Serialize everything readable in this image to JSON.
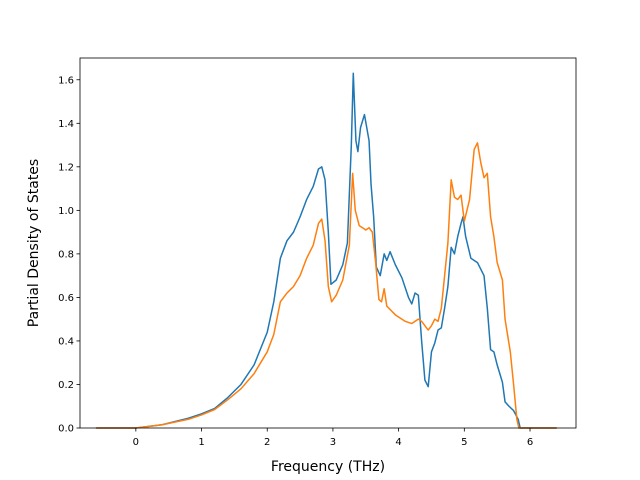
{
  "chart_data": {
    "type": "line",
    "title": "",
    "xlabel": "Frequency (THz)",
    "ylabel": "Partial Density of States",
    "xlim": [
      -0.85,
      6.7
    ],
    "ylim": [
      0.0,
      1.7
    ],
    "xticks": [
      0,
      1,
      2,
      3,
      4,
      5,
      6
    ],
    "yticks": [
      0.0,
      0.2,
      0.4,
      0.6,
      0.8,
      1.0,
      1.2,
      1.4,
      1.6
    ],
    "ytick_labels": [
      "0.0",
      "0.2",
      "0.4",
      "0.6",
      "0.8",
      "1.0",
      "1.2",
      "1.4",
      "1.6"
    ],
    "grid": false,
    "legend": false,
    "series": [
      {
        "color": "#1f77b4",
        "points": [
          [
            -0.6,
            0.0
          ],
          [
            0.0,
            0.0
          ],
          [
            0.4,
            0.015
          ],
          [
            0.8,
            0.045
          ],
          [
            1.0,
            0.065
          ],
          [
            1.2,
            0.09
          ],
          [
            1.4,
            0.14
          ],
          [
            1.6,
            0.2
          ],
          [
            1.8,
            0.29
          ],
          [
            2.0,
            0.44
          ],
          [
            2.1,
            0.58
          ],
          [
            2.2,
            0.78
          ],
          [
            2.3,
            0.86
          ],
          [
            2.4,
            0.9
          ],
          [
            2.5,
            0.97
          ],
          [
            2.6,
            1.05
          ],
          [
            2.7,
            1.11
          ],
          [
            2.78,
            1.19
          ],
          [
            2.83,
            1.2
          ],
          [
            2.88,
            1.14
          ],
          [
            2.93,
            0.9
          ],
          [
            2.97,
            0.66
          ],
          [
            3.05,
            0.68
          ],
          [
            3.15,
            0.75
          ],
          [
            3.22,
            0.85
          ],
          [
            3.28,
            1.3
          ],
          [
            3.31,
            1.63
          ],
          [
            3.35,
            1.32
          ],
          [
            3.38,
            1.27
          ],
          [
            3.42,
            1.38
          ],
          [
            3.48,
            1.44
          ],
          [
            3.55,
            1.32
          ],
          [
            3.58,
            1.12
          ],
          [
            3.62,
            0.97
          ],
          [
            3.66,
            0.74
          ],
          [
            3.72,
            0.7
          ],
          [
            3.78,
            0.8
          ],
          [
            3.82,
            0.77
          ],
          [
            3.87,
            0.81
          ],
          [
            3.95,
            0.75
          ],
          [
            4.05,
            0.69
          ],
          [
            4.15,
            0.6
          ],
          [
            4.2,
            0.57
          ],
          [
            4.25,
            0.62
          ],
          [
            4.3,
            0.61
          ],
          [
            4.35,
            0.4
          ],
          [
            4.4,
            0.22
          ],
          [
            4.45,
            0.19
          ],
          [
            4.5,
            0.35
          ],
          [
            4.55,
            0.39
          ],
          [
            4.6,
            0.45
          ],
          [
            4.65,
            0.46
          ],
          [
            4.7,
            0.55
          ],
          [
            4.75,
            0.65
          ],
          [
            4.8,
            0.83
          ],
          [
            4.85,
            0.8
          ],
          [
            4.9,
            0.88
          ],
          [
            4.95,
            0.94
          ],
          [
            4.98,
            0.97
          ],
          [
            5.02,
            0.88
          ],
          [
            5.1,
            0.78
          ],
          [
            5.2,
            0.76
          ],
          [
            5.3,
            0.7
          ],
          [
            5.35,
            0.55
          ],
          [
            5.4,
            0.36
          ],
          [
            5.45,
            0.35
          ],
          [
            5.5,
            0.29
          ],
          [
            5.58,
            0.21
          ],
          [
            5.62,
            0.12
          ],
          [
            5.68,
            0.1
          ],
          [
            5.75,
            0.08
          ],
          [
            5.82,
            0.04
          ],
          [
            5.85,
            0.0
          ],
          [
            6.4,
            0.0
          ]
        ]
      },
      {
        "color": "#ff7f0e",
        "points": [
          [
            -0.6,
            0.0
          ],
          [
            0.0,
            0.0
          ],
          [
            0.4,
            0.015
          ],
          [
            0.8,
            0.04
          ],
          [
            1.0,
            0.06
          ],
          [
            1.2,
            0.085
          ],
          [
            1.4,
            0.13
          ],
          [
            1.6,
            0.18
          ],
          [
            1.8,
            0.25
          ],
          [
            2.0,
            0.35
          ],
          [
            2.1,
            0.43
          ],
          [
            2.2,
            0.58
          ],
          [
            2.3,
            0.62
          ],
          [
            2.4,
            0.65
          ],
          [
            2.5,
            0.7
          ],
          [
            2.6,
            0.78
          ],
          [
            2.7,
            0.84
          ],
          [
            2.78,
            0.94
          ],
          [
            2.83,
            0.96
          ],
          [
            2.88,
            0.86
          ],
          [
            2.93,
            0.65
          ],
          [
            2.98,
            0.58
          ],
          [
            3.05,
            0.61
          ],
          [
            3.15,
            0.68
          ],
          [
            3.25,
            0.84
          ],
          [
            3.3,
            1.17
          ],
          [
            3.34,
            1.0
          ],
          [
            3.4,
            0.93
          ],
          [
            3.45,
            0.92
          ],
          [
            3.5,
            0.91
          ],
          [
            3.55,
            0.92
          ],
          [
            3.6,
            0.9
          ],
          [
            3.65,
            0.76
          ],
          [
            3.7,
            0.59
          ],
          [
            3.74,
            0.58
          ],
          [
            3.78,
            0.64
          ],
          [
            3.82,
            0.56
          ],
          [
            3.95,
            0.52
          ],
          [
            4.1,
            0.49
          ],
          [
            4.2,
            0.48
          ],
          [
            4.3,
            0.5
          ],
          [
            4.35,
            0.49
          ],
          [
            4.45,
            0.45
          ],
          [
            4.5,
            0.47
          ],
          [
            4.55,
            0.5
          ],
          [
            4.6,
            0.49
          ],
          [
            4.65,
            0.55
          ],
          [
            4.7,
            0.7
          ],
          [
            4.75,
            0.85
          ],
          [
            4.8,
            1.14
          ],
          [
            4.85,
            1.06
          ],
          [
            4.9,
            1.05
          ],
          [
            4.95,
            1.07
          ],
          [
            5.0,
            0.95
          ],
          [
            5.08,
            1.05
          ],
          [
            5.15,
            1.28
          ],
          [
            5.2,
            1.31
          ],
          [
            5.25,
            1.22
          ],
          [
            5.3,
            1.15
          ],
          [
            5.35,
            1.17
          ],
          [
            5.4,
            0.97
          ],
          [
            5.45,
            0.88
          ],
          [
            5.5,
            0.76
          ],
          [
            5.58,
            0.68
          ],
          [
            5.62,
            0.5
          ],
          [
            5.7,
            0.35
          ],
          [
            5.75,
            0.2
          ],
          [
            5.8,
            0.04
          ],
          [
            5.83,
            0.0
          ],
          [
            6.4,
            0.0
          ]
        ]
      }
    ]
  }
}
